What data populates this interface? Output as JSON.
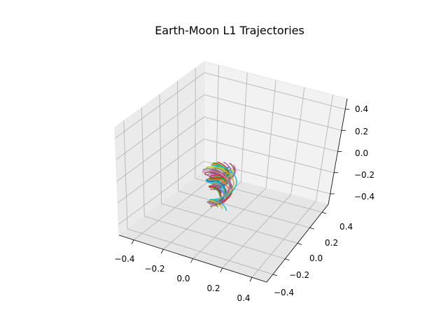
{
  "chart_data": {
    "type": "line",
    "projection": "3d",
    "title": "Earth-Moon L1 Trajectories",
    "xlabel": "",
    "ylabel": "",
    "zlabel": "",
    "xlim": [
      -0.5,
      0.5
    ],
    "ylim": [
      -0.5,
      0.5
    ],
    "zlim": [
      -0.5,
      0.5
    ],
    "x_ticks": [
      "−0.4",
      "−0.2",
      "0.0",
      "0.2",
      "0.4"
    ],
    "y_ticks": [
      "−0.4",
      "−0.2",
      "0.0",
      "0.2",
      "0.4"
    ],
    "z_ticks": [
      "−0.4",
      "−0.2",
      "0.0",
      "0.2",
      "0.4"
    ],
    "grid": true,
    "legend": "none",
    "series_colors": [
      "#1f77b4",
      "#ff7f0e",
      "#2ca02c",
      "#d62728",
      "#9467bd",
      "#8c564b",
      "#e377c2",
      "#7f7f7f",
      "#bcbd22",
      "#17becf"
    ],
    "series_count": 30
  }
}
